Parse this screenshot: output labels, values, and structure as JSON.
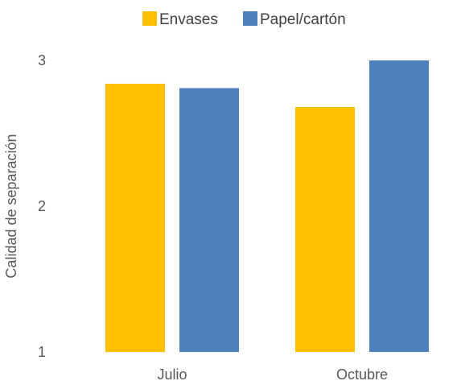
{
  "chart_data": {
    "type": "bar",
    "title": "",
    "xlabel": "",
    "ylabel": "Calidad de separación",
    "categories": [
      "Julio",
      "Octubre"
    ],
    "series": [
      {
        "name": "Envases",
        "values": [
          2.84,
          2.68
        ],
        "color": "#FFC000"
      },
      {
        "name": "Papel/cartón",
        "values": [
          2.81,
          3.0
        ],
        "color": "#4F81BD"
      }
    ],
    "ylim": [
      1,
      3
    ],
    "yticks": [
      "1",
      "2",
      "3"
    ],
    "grid": false,
    "legend": "top-center"
  }
}
